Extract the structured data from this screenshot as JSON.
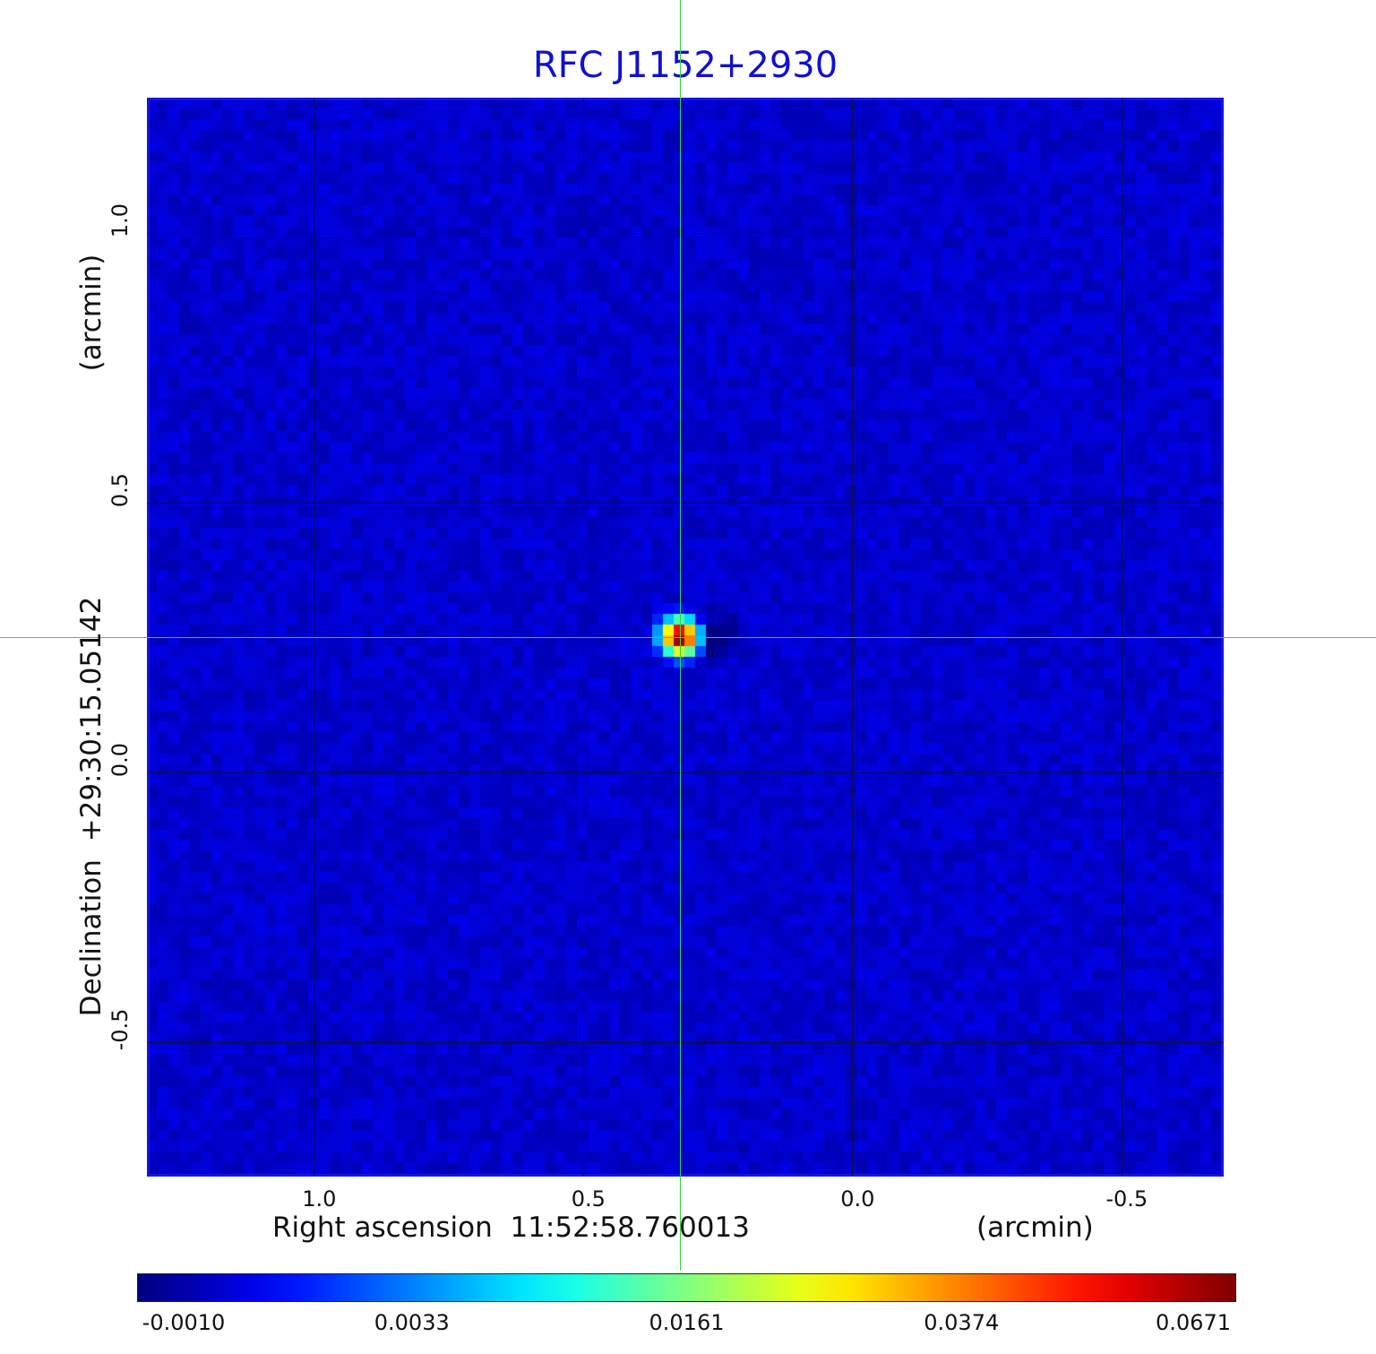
{
  "chart_data": {
    "type": "heatmap",
    "title": "RFC J1152+2930",
    "xlabel": "Right ascension  11:52:58.760013",
    "xlabel_unit": "(arcmin)",
    "ylabel": "Declination  +29:30:15.05142",
    "ylabel_unit": "(arcmin)",
    "xlim": [
      1.31,
      -0.69
    ],
    "ylim": [
      -0.75,
      1.25
    ],
    "x_ticks": [
      1.0,
      0.5,
      0.0,
      -0.5
    ],
    "x_tick_labels": [
      "1.0",
      "0.5",
      "0.0",
      "-0.5"
    ],
    "y_ticks": [
      1.0,
      0.5,
      0.0,
      -0.5
    ],
    "y_tick_labels": [
      "1.0",
      "0.5",
      "0.0",
      "-0.5"
    ],
    "grid": true,
    "crosshair": {
      "x": 0.32,
      "y": 0.25
    },
    "source": {
      "x": 0.32,
      "y": 0.25,
      "peak": 0.0671
    },
    "background_level": 0.0003,
    "colormap": "jet",
    "colorbar": {
      "placement": "bottom",
      "min": -0.001,
      "max": 0.0671,
      "ticks": [
        -0.001,
        0.0033,
        0.0161,
        0.0374,
        0.0671
      ],
      "tick_labels": [
        "-0.0010",
        "0.0033",
        "0.0161",
        "0.0374",
        "0.0671"
      ]
    },
    "colors": {
      "title": "#1010d0",
      "frame": "#1515e6",
      "grid": "#101030",
      "crosshair": "#2bd93b"
    }
  }
}
